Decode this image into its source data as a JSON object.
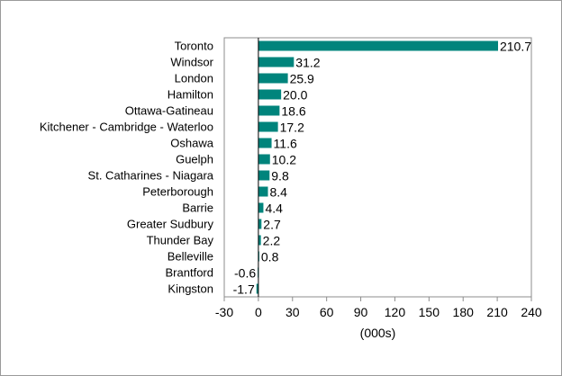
{
  "chart_data": {
    "type": "bar",
    "orientation": "horizontal",
    "categories": [
      "Toronto",
      "Windsor",
      "London",
      "Hamilton",
      "Ottawa-Gatineau",
      "Kitchener - Cambridge - Waterloo",
      "Oshawa",
      "Guelph",
      "St. Catharines - Niagara",
      "Peterborough",
      "Barrie",
      "Greater Sudbury",
      "Thunder Bay",
      "Belleville",
      "Brantford",
      "Kingston"
    ],
    "values": [
      210.7,
      31.2,
      25.9,
      20.0,
      18.6,
      17.2,
      11.6,
      10.2,
      9.8,
      8.4,
      4.4,
      2.7,
      2.2,
      0.8,
      -0.6,
      -1.7
    ],
    "value_labels": [
      "210.7",
      "31.2",
      "25.9",
      "20.0",
      "18.6",
      "17.2",
      "11.6",
      "10.2",
      "9.8",
      "8.4",
      "4.4",
      "2.7",
      "2.2",
      "0.8",
      "-0.6",
      "-1.7"
    ],
    "xlabel": "(000s)",
    "xlim": [
      -30,
      240
    ],
    "xticks": [
      -30,
      0,
      30,
      60,
      90,
      120,
      150,
      180,
      210,
      240
    ],
    "grid": false,
    "bar_color": "#00847c"
  }
}
